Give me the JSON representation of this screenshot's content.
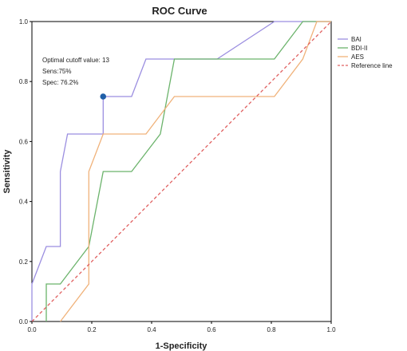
{
  "chart_data": {
    "type": "line",
    "title": "ROC Curve",
    "xlabel": "1-Specificity",
    "ylabel": "Sensitivity",
    "xlim": [
      0,
      1
    ],
    "ylim": [
      0,
      1
    ],
    "xticks": [
      "0.0",
      "0.2",
      "0.4",
      "0.6",
      "0.8",
      "1.0"
    ],
    "yticks": [
      "0.0",
      "0.2",
      "0.4",
      "0.6",
      "0.8",
      "1.0"
    ],
    "grid": false,
    "legend_position": "right",
    "series": [
      {
        "name": "BAI",
        "color": "#9b8ee0",
        "style": "solid",
        "points": [
          [
            0,
            0
          ],
          [
            0,
            0.125
          ],
          [
            0.048,
            0.25
          ],
          [
            0.095,
            0.25
          ],
          [
            0.095,
            0.5
          ],
          [
            0.119,
            0.625
          ],
          [
            0.143,
            0.625
          ],
          [
            0.238,
            0.625
          ],
          [
            0.238,
            0.75
          ],
          [
            0.333,
            0.75
          ],
          [
            0.381,
            0.875
          ],
          [
            0.619,
            0.875
          ],
          [
            0.81,
            1.0
          ],
          [
            1.0,
            1.0
          ]
        ]
      },
      {
        "name": "BDI-II",
        "color": "#6bb36b",
        "style": "solid",
        "points": [
          [
            0.048,
            0
          ],
          [
            0.048,
            0.125
          ],
          [
            0.095,
            0.125
          ],
          [
            0.19,
            0.25
          ],
          [
            0.238,
            0.5
          ],
          [
            0.333,
            0.5
          ],
          [
            0.429,
            0.625
          ],
          [
            0.476,
            0.875
          ],
          [
            0.81,
            0.875
          ],
          [
            0.905,
            1.0
          ],
          [
            1.0,
            1.0
          ]
        ]
      },
      {
        "name": "AES",
        "color": "#f0b27a",
        "style": "solid",
        "points": [
          [
            0.095,
            0
          ],
          [
            0.19,
            0.125
          ],
          [
            0.19,
            0.5
          ],
          [
            0.238,
            0.625
          ],
          [
            0.381,
            0.625
          ],
          [
            0.476,
            0.75
          ],
          [
            0.81,
            0.75
          ],
          [
            0.905,
            0.875
          ],
          [
            0.952,
            1.0
          ],
          [
            1.0,
            1.0
          ]
        ]
      },
      {
        "name": "Reference line",
        "color": "#e06060",
        "style": "dashed",
        "points": [
          [
            0,
            0
          ],
          [
            1,
            1
          ]
        ]
      }
    ],
    "optimal_point": {
      "x": 0.238,
      "y": 0.75,
      "color": "#1f5fa8"
    },
    "annotation": [
      "Optimal cutoff value: 13",
      "Sens:75%",
      "Spec: 76.2%"
    ]
  }
}
